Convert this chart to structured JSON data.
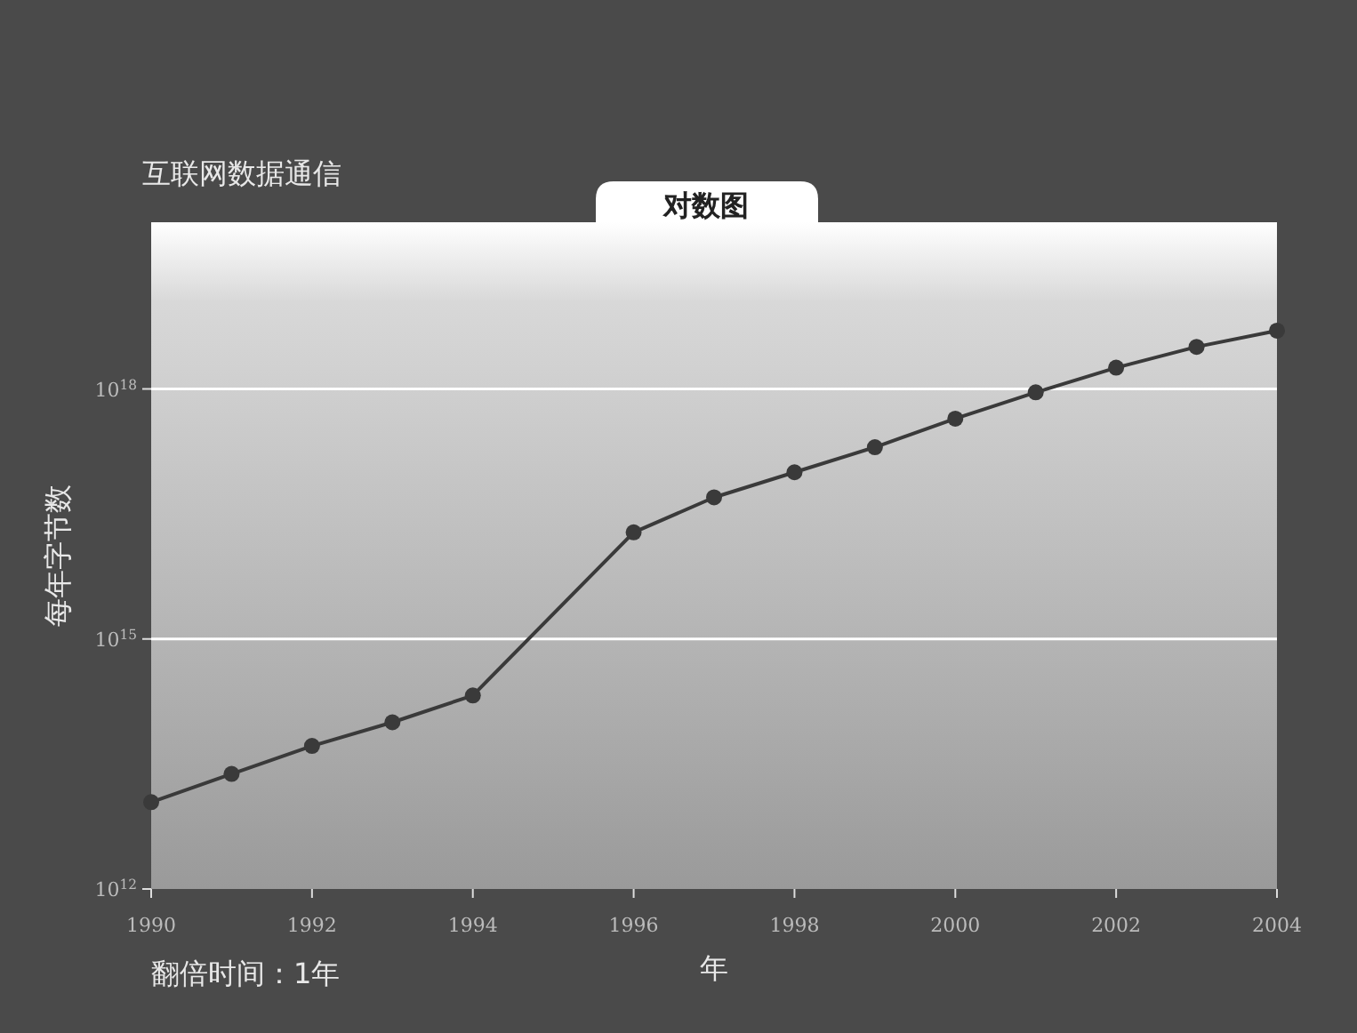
{
  "chart_data": {
    "type": "line",
    "title": "互联网数据通信",
    "subtitle": "对数图",
    "xlabel": "年",
    "ylabel": "每年字节数",
    "annotations": [
      "翻倍时间：1年"
    ],
    "x": [
      1990,
      1991,
      1992,
      1993,
      1994,
      1996,
      1997,
      1998,
      1999,
      2000,
      2001,
      2002,
      2003,
      2004
    ],
    "series": [
      {
        "color": "#3a3a3a",
        "values": [
          11000000000000.0,
          24000000000000.0,
          52000000000000.0,
          100000000000000.0,
          210000000000000.0,
          1.9e+16,
          5e+16,
          1e+17,
          2e+17,
          4.4e+17,
          9.1e+17,
          1.8e+18,
          3.2e+18,
          5e+18
        ]
      }
    ],
    "xlim": [
      1990,
      2004
    ],
    "ylim": [
      1000000000000.0,
      1e+20
    ],
    "xticks": [
      1990,
      1992,
      1994,
      1996,
      1998,
      2000,
      2002,
      2004
    ],
    "yticks": [
      {
        "value": 1000000000000.0,
        "label": "10$^{12}$"
      },
      {
        "value": 1000000000000000.0,
        "label": "10$^{15}$"
      },
      {
        "value": 1e+18,
        "label": "10$^{18}$"
      }
    ],
    "log": "y",
    "grid": "y",
    "marker": "circle"
  }
}
